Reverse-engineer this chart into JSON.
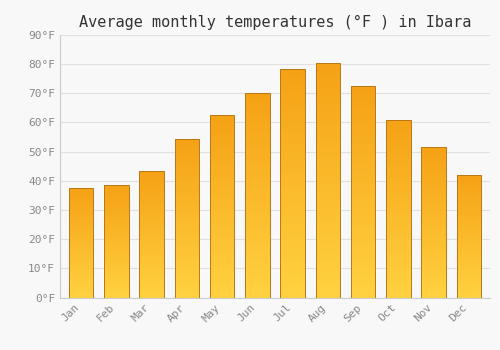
{
  "title": "Average monthly temperatures (°F ) in Ibara",
  "months": [
    "Jan",
    "Feb",
    "Mar",
    "Apr",
    "May",
    "Jun",
    "Jul",
    "Aug",
    "Sep",
    "Oct",
    "Nov",
    "Dec"
  ],
  "values": [
    37.5,
    38.5,
    43.5,
    54.5,
    62.5,
    70.0,
    78.5,
    80.5,
    72.5,
    61.0,
    51.5,
    42.0
  ],
  "bar_color_bottom": "#FFD060",
  "bar_color_top": "#F5A020",
  "bar_edge_color": "#C8891080",
  "ylim": [
    0,
    90
  ],
  "yticks": [
    0,
    10,
    20,
    30,
    40,
    50,
    60,
    70,
    80,
    90
  ],
  "background_color": "#f8f8f8",
  "grid_color": "#e0e0e0",
  "title_fontsize": 11,
  "tick_fontsize": 8,
  "font_family": "monospace"
}
